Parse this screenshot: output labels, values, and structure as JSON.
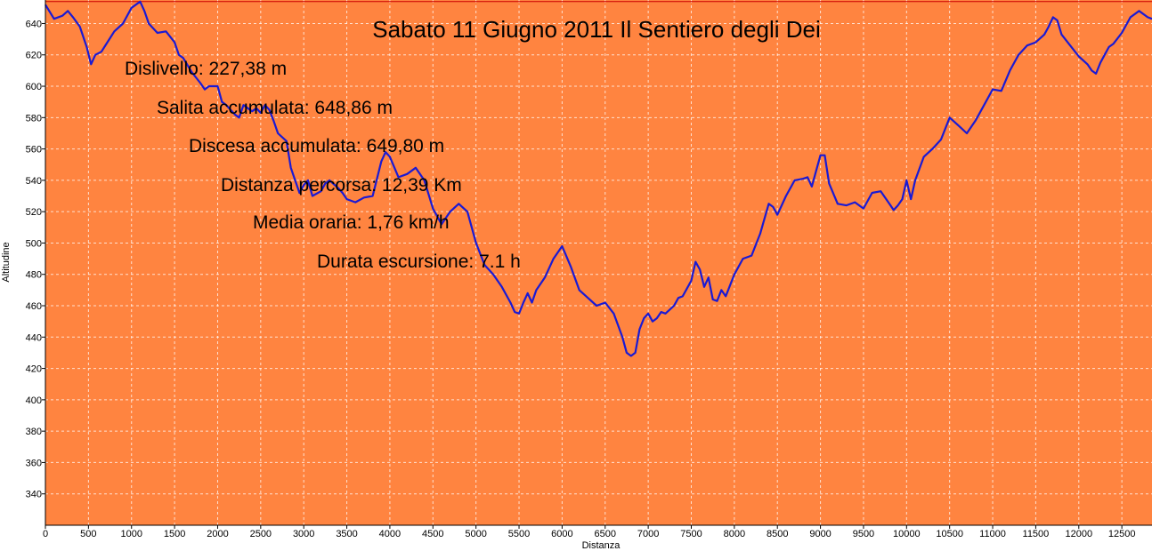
{
  "chart_data": {
    "type": "line",
    "title": "Sabato 11 Giugno 2011 Il Sentiero degli Dei",
    "xlabel": "Distanza",
    "ylabel": "Altitudine",
    "xlim": [
      0,
      12850
    ],
    "ylim": [
      320,
      655
    ],
    "x_ticks": [
      0,
      500,
      1000,
      1500,
      2000,
      2500,
      3000,
      3500,
      4000,
      4500,
      5000,
      5500,
      6000,
      6500,
      7000,
      7500,
      8000,
      8500,
      9000,
      9500,
      10000,
      10500,
      11000,
      11500,
      12000,
      12500
    ],
    "y_ticks": [
      340,
      360,
      380,
      400,
      420,
      440,
      460,
      480,
      500,
      520,
      540,
      560,
      580,
      600,
      620,
      640
    ],
    "grid": true,
    "background_color": "#ff8440",
    "line_color": "#1a1ad4",
    "reference_line": {
      "y": 654,
      "color": "#cc0000"
    },
    "annotations": [
      "Dislivello: 227,38 m",
      "Salita accumulata: 648,86 m",
      "Discesa accumulata: 649,80 m",
      "Distanza percorsa: 12,39 Km",
      "Media oraria: 1,76 km/h",
      "Durata escursione: 7.1 h"
    ],
    "series": [
      {
        "x": [
          0,
          100,
          200,
          260,
          320,
          400,
          480,
          530,
          580,
          650,
          720,
          800,
          900,
          1000,
          1100,
          1150,
          1200,
          1300,
          1400,
          1500,
          1550,
          1600,
          1700,
          1800,
          1850,
          1900,
          2000,
          2050,
          2100,
          2200,
          2250,
          2300,
          2400,
          2450,
          2500,
          2550,
          2600,
          2650,
          2700,
          2800,
          2850,
          2900,
          2950,
          3000,
          3050,
          3100,
          3200,
          3250,
          3300,
          3400,
          3450,
          3500,
          3600,
          3700,
          3800,
          3900,
          3950,
          4000,
          4100,
          4200,
          4300,
          4400,
          4500,
          4600,
          4700,
          4800,
          4900,
          5000,
          5100,
          5200,
          5300,
          5400,
          5450,
          5500,
          5550,
          5600,
          5650,
          5700,
          5800,
          5900,
          6000,
          6100,
          6200,
          6300,
          6400,
          6500,
          6600,
          6700,
          6750,
          6800,
          6850,
          6900,
          6950,
          7000,
          7050,
          7100,
          7150,
          7200,
          7300,
          7350,
          7400,
          7500,
          7550,
          7600,
          7650,
          7700,
          7750,
          7800,
          7850,
          7900,
          8000,
          8100,
          8200,
          8300,
          8400,
          8450,
          8500,
          8600,
          8700,
          8800,
          8850,
          8900,
          8950,
          9000,
          9050,
          9100,
          9200,
          9300,
          9400,
          9500,
          9600,
          9700,
          9800,
          9850,
          9900,
          9950,
          10000,
          10050,
          10100,
          10200,
          10300,
          10400,
          10500,
          10600,
          10700,
          10800,
          10900,
          11000,
          11100,
          11200,
          11300,
          11400,
          11500,
          11600,
          11650,
          11700,
          11750,
          11800,
          11900,
          12000,
          12100,
          12150,
          12200,
          12250,
          12300,
          12350,
          12400,
          12500,
          12600,
          12700,
          12800,
          12850
        ],
        "y": [
          652,
          643,
          645,
          648,
          644,
          638,
          625,
          614,
          620,
          622,
          628,
          635,
          640,
          650,
          654,
          648,
          640,
          634,
          635,
          628,
          620,
          618,
          609,
          602,
          598,
          600,
          600,
          590,
          588,
          582,
          580,
          588,
          584,
          586,
          583,
          588,
          585,
          578,
          570,
          565,
          548,
          540,
          532,
          537,
          540,
          530,
          533,
          538,
          540,
          535,
          532,
          528,
          526,
          529,
          530,
          552,
          558,
          555,
          542,
          544,
          548,
          540,
          522,
          512,
          520,
          525,
          520,
          500,
          486,
          480,
          472,
          462,
          456,
          455,
          462,
          468,
          462,
          470,
          478,
          490,
          498,
          485,
          470,
          465,
          460,
          462,
          455,
          440,
          430,
          428,
          430,
          445,
          452,
          455,
          450,
          452,
          456,
          455,
          460,
          465,
          466,
          476,
          488,
          483,
          472,
          478,
          464,
          463,
          470,
          466,
          480,
          490,
          492,
          506,
          525,
          523,
          518,
          530,
          540,
          541,
          542,
          536,
          546,
          556,
          556,
          538,
          525,
          524,
          526,
          522,
          532,
          533,
          525,
          521,
          524,
          528,
          540,
          528,
          540,
          555,
          560,
          566,
          580,
          575,
          570,
          578,
          588,
          598,
          597,
          610,
          620,
          626,
          628,
          633,
          638,
          644,
          642,
          633,
          626,
          619,
          614,
          610,
          608,
          615,
          620,
          625,
          627,
          634,
          644,
          648,
          644,
          643
        ]
      }
    ]
  }
}
